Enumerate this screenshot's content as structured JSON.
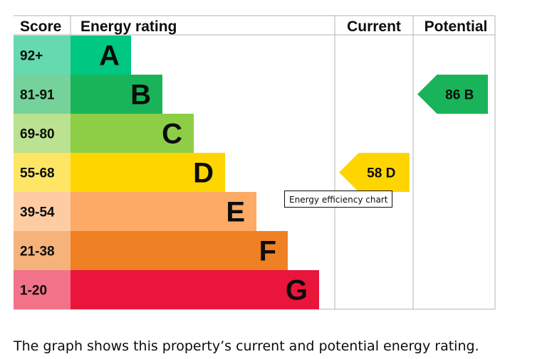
{
  "headers": {
    "score": "Score",
    "rating": "Energy rating",
    "current": "Current",
    "potential": "Potential"
  },
  "tooltip": "Energy efficiency chart",
  "caption": "The graph shows this property’s current and potential energy rating.",
  "chart_data": {
    "type": "bar",
    "bands": [
      {
        "letter": "A",
        "range": "92+",
        "color": "#00c781",
        "score_color": "#66d9b0"
      },
      {
        "letter": "B",
        "range": "81-91",
        "color": "#19b459",
        "score_color": "#75d29b"
      },
      {
        "letter": "C",
        "range": "69-80",
        "color": "#8dce46",
        "score_color": "#bbe290"
      },
      {
        "letter": "D",
        "range": "55-68",
        "color": "#ffd500",
        "score_color": "#ffe566"
      },
      {
        "letter": "E",
        "range": "39-54",
        "color": "#fcaa65",
        "score_color": "#fdcca3"
      },
      {
        "letter": "F",
        "range": "21-38",
        "color": "#ef8023",
        "score_color": "#f5b37b"
      },
      {
        "letter": "G",
        "range": "1-20",
        "color": "#e9153b",
        "score_color": "#f27389"
      }
    ],
    "current": {
      "value": 58,
      "band": "D",
      "label": "58  D",
      "color": "#ffd500"
    },
    "potential": {
      "value": 86,
      "band": "B",
      "label": "86  B",
      "color": "#19b459"
    }
  }
}
